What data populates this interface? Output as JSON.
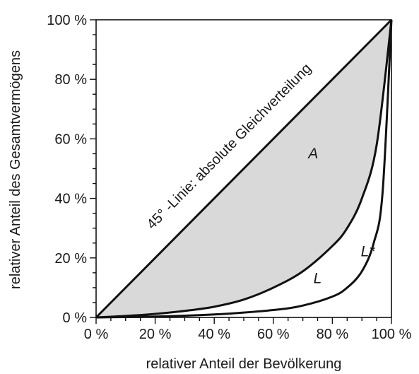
{
  "chart_data": {
    "type": "line",
    "xlabel": "relativer Anteil der Bevölkerung",
    "ylabel": "relativer Anteil des Gesamtvermögens",
    "xlim": [
      0,
      100
    ],
    "ylim": [
      0,
      100
    ],
    "x_unit": "%",
    "y_unit": "%",
    "grid": false,
    "x_ticks": [
      "0 %",
      "20 %",
      "40 %",
      "60 %",
      "80 %",
      "100 %"
    ],
    "y_ticks": [
      "0 %",
      "20 %",
      "40 %",
      "60 %",
      "80 %",
      "100 %"
    ],
    "x_tick_values": [
      0,
      20,
      40,
      60,
      80,
      100
    ],
    "y_tick_values": [
      0,
      20,
      40,
      60,
      80,
      100
    ],
    "minor_tick_step": 5,
    "shade_color": "#d9d9d9",
    "line_color": "#111111",
    "series": [
      {
        "name": "45°-Linie: absolute Gleichverteilung",
        "x": [
          0,
          100
        ],
        "y": [
          0,
          100
        ]
      },
      {
        "name": "L",
        "x": [
          0,
          10,
          20,
          30,
          40,
          50,
          60,
          70,
          80,
          85,
          90,
          95,
          100
        ],
        "y": [
          0,
          0.5,
          1.2,
          2.2,
          3.6,
          6,
          10,
          15.5,
          24,
          30,
          40,
          58,
          100
        ]
      },
      {
        "name": "L*",
        "x": [
          0,
          20,
          40,
          60,
          70,
          80,
          85,
          90,
          94,
          97,
          100
        ],
        "y": [
          0,
          0.3,
          1,
          2.5,
          4,
          7,
          10,
          15.5,
          25,
          42,
          100
        ]
      }
    ],
    "annotations": [
      {
        "text": "45° -Linie: absolute Gleichverteilung",
        "x": 48,
        "y": 55,
        "rotation": "along diagonal"
      },
      {
        "text": "A",
        "x": 73.5,
        "y": 53.5
      },
      {
        "text": "L",
        "x": 75,
        "y": 11.5
      },
      {
        "text": "L*",
        "x": 92,
        "y": 20.5
      }
    ],
    "shaded_region": {
      "label": "A",
      "between": [
        "45°-Linie: absolute Gleichverteilung",
        "L"
      ]
    }
  }
}
